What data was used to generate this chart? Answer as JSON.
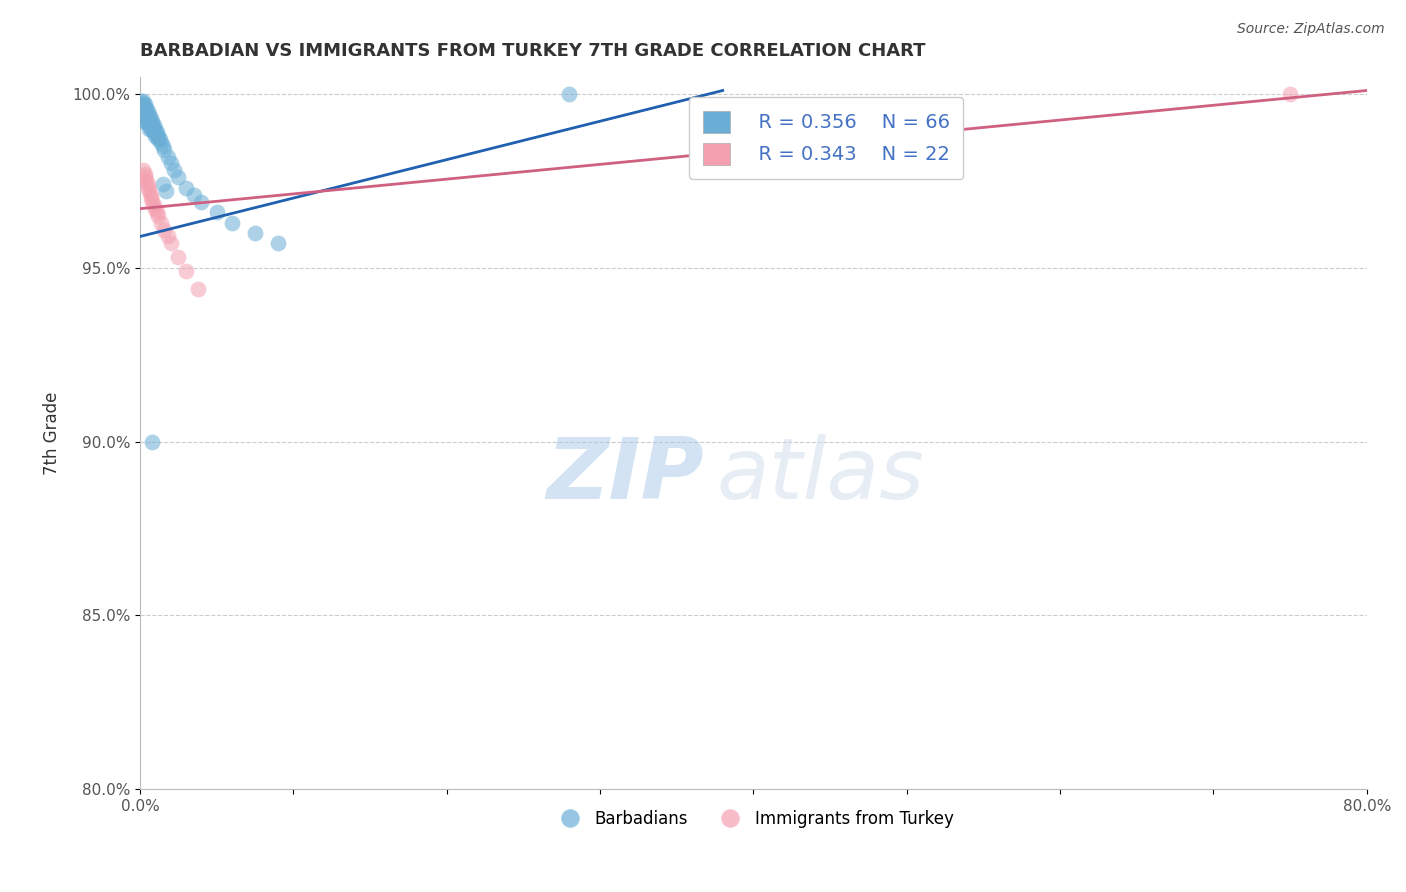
{
  "title": "BARBADIAN VS IMMIGRANTS FROM TURKEY 7TH GRADE CORRELATION CHART",
  "source_text": "Source: ZipAtlas.com",
  "xlabel": "",
  "ylabel": "7th Grade",
  "xlim": [
    0.0,
    0.8
  ],
  "ylim": [
    0.8,
    1.005
  ],
  "xticks": [
    0.0,
    0.1,
    0.2,
    0.3,
    0.4,
    0.5,
    0.6,
    0.7,
    0.8
  ],
  "xtick_labels": [
    "0.0%",
    "",
    "",
    "",
    "",
    "",
    "",
    "",
    "80.0%"
  ],
  "yticks": [
    0.8,
    0.85,
    0.9,
    0.95,
    1.0
  ],
  "ytick_labels": [
    "80.0%",
    "85.0%",
    "90.0%",
    "95.0%",
    "100.0%"
  ],
  "legend_r1": "R = 0.356",
  "legend_n1": "N = 66",
  "legend_r2": "R = 0.343",
  "legend_n2": "N = 22",
  "color_blue": "#6aaed6",
  "color_pink": "#f4a0b0",
  "trendline_blue": "#2060b0",
  "trendline_pink": "#d06080",
  "watermark_zip": "ZIP",
  "watermark_atlas": "atlas",
  "background_color": "#ffffff",
  "grid_color": "#cccccc",
  "blue_points_x": [
    0.001,
    0.001,
    0.001,
    0.002,
    0.002,
    0.002,
    0.002,
    0.002,
    0.003,
    0.003,
    0.003,
    0.003,
    0.003,
    0.003,
    0.004,
    0.004,
    0.004,
    0.004,
    0.004,
    0.005,
    0.005,
    0.005,
    0.005,
    0.006,
    0.006,
    0.006,
    0.006,
    0.006,
    0.007,
    0.007,
    0.007,
    0.007,
    0.008,
    0.008,
    0.008,
    0.009,
    0.009,
    0.009,
    0.01,
    0.01,
    0.01,
    0.011,
    0.011,
    0.012,
    0.012,
    0.013,
    0.014,
    0.015,
    0.016,
    0.018,
    0.02,
    0.022,
    0.025,
    0.03,
    0.035,
    0.04,
    0.05,
    0.06,
    0.075,
    0.09,
    0.015,
    0.017,
    0.008,
    0.28
  ],
  "blue_points_y": [
    0.998,
    0.997,
    0.996,
    0.998,
    0.997,
    0.996,
    0.995,
    0.994,
    0.997,
    0.996,
    0.995,
    0.994,
    0.993,
    0.992,
    0.996,
    0.995,
    0.994,
    0.993,
    0.992,
    0.995,
    0.994,
    0.993,
    0.992,
    0.994,
    0.993,
    0.992,
    0.991,
    0.99,
    0.993,
    0.992,
    0.991,
    0.99,
    0.992,
    0.991,
    0.99,
    0.991,
    0.99,
    0.989,
    0.99,
    0.989,
    0.988,
    0.989,
    0.988,
    0.988,
    0.987,
    0.987,
    0.986,
    0.985,
    0.984,
    0.982,
    0.98,
    0.978,
    0.976,
    0.973,
    0.971,
    0.969,
    0.966,
    0.963,
    0.96,
    0.957,
    0.974,
    0.972,
    0.9,
    1.0
  ],
  "pink_points_x": [
    0.002,
    0.003,
    0.003,
    0.004,
    0.005,
    0.005,
    0.006,
    0.007,
    0.007,
    0.008,
    0.009,
    0.01,
    0.011,
    0.012,
    0.014,
    0.016,
    0.018,
    0.02,
    0.025,
    0.03,
    0.038,
    0.75
  ],
  "pink_points_y": [
    0.978,
    0.977,
    0.976,
    0.975,
    0.974,
    0.973,
    0.972,
    0.971,
    0.97,
    0.969,
    0.968,
    0.967,
    0.966,
    0.965,
    0.963,
    0.961,
    0.959,
    0.957,
    0.953,
    0.949,
    0.944,
    1.0
  ],
  "blue_trendline_x": [
    0.0,
    0.38
  ],
  "blue_trendline_y": [
    0.959,
    1.001
  ],
  "pink_trendline_x": [
    0.0,
    0.8
  ],
  "pink_trendline_y": [
    0.967,
    1.001
  ]
}
